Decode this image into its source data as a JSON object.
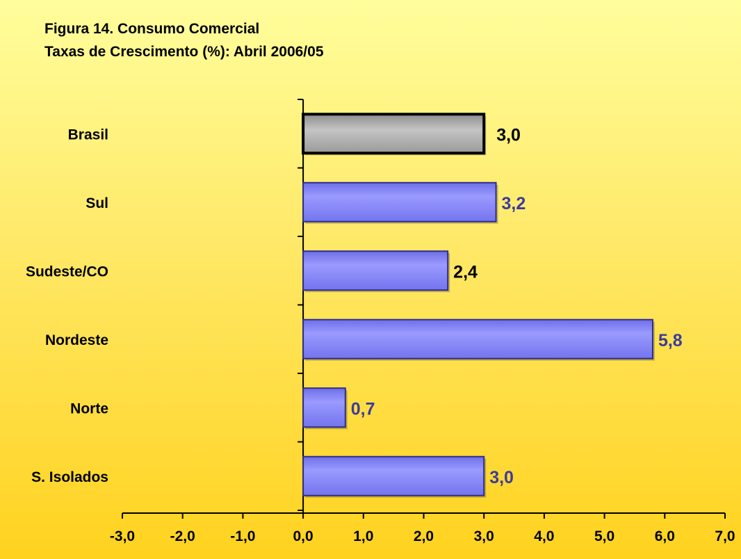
{
  "title": "Figura 14. Consumo Comercial",
  "subtitle": "Taxas de Crescimento (%): Abril 2006/05",
  "colors": {
    "highlight_fill": "#a8a8a8",
    "highlight_label": "#000000",
    "bar_fill": "#8c8cf5",
    "bar_label": "#3b3b9c",
    "axis": "#000000"
  },
  "chart_data": {
    "type": "bar",
    "orientation": "horizontal",
    "categories": [
      "Brasil",
      "Sul",
      "Sudeste/CO",
      "Nordeste",
      "Norte",
      "S. Isolados"
    ],
    "values": [
      3.0,
      3.2,
      2.4,
      5.8,
      0.7,
      3.0
    ],
    "data_labels": [
      "3,0",
      "3,2",
      "2,4",
      "5,8",
      "0,7",
      "3,0"
    ],
    "highlighted": [
      "Brasil"
    ],
    "xlim": [
      -3.0,
      7.0
    ],
    "x_ticks": [
      -3,
      -2,
      -1,
      0,
      1,
      2,
      3,
      4,
      5,
      6,
      7
    ],
    "x_tick_labels": [
      "-3,0",
      "-2,0",
      "-1,0",
      "0,0",
      "1,0",
      "2,0",
      "3,0",
      "4,0",
      "5,0",
      "6,0",
      "7,0"
    ],
    "grid": false,
    "legend": "none"
  }
}
